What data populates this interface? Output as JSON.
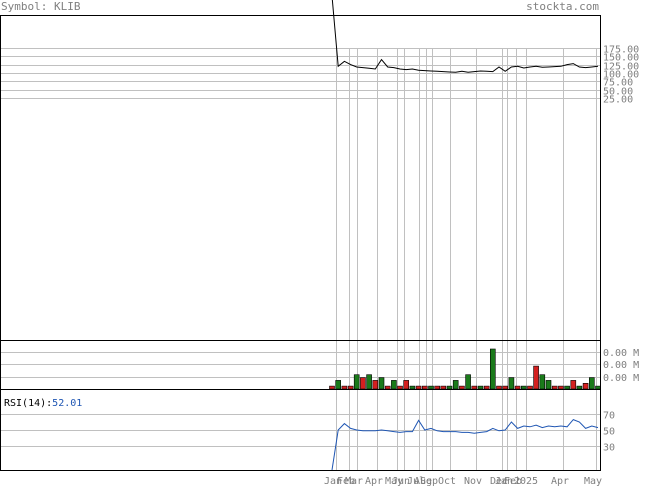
{
  "header": {
    "symbol_label": "Symbol: KLIB",
    "site": "stockta.com"
  },
  "chart_data": [
    {
      "type": "line",
      "panel": "price",
      "title": "",
      "y_ticks": [
        "175.00",
        "150.00",
        "125.00",
        "100.00",
        "75.00",
        "50.00",
        "25.00"
      ],
      "y_tick_values": [
        175,
        150,
        125,
        100,
        75,
        50,
        25
      ],
      "x_month_labels": [
        "Jan",
        "Feb",
        "Mar",
        "Apr",
        "May",
        "Jun",
        "Jul",
        "Aug",
        "Sep",
        "Oct",
        "Nov",
        "Dec",
        "Jan",
        "Feb",
        "2025",
        "Apr",
        "May"
      ],
      "series": [
        {
          "values": [
            5000,
            120,
            135,
            125,
            118,
            116,
            114,
            112,
            140,
            118,
            116,
            112,
            110,
            112,
            108,
            107,
            106,
            105,
            104,
            103,
            102,
            105,
            102,
            104,
            106,
            105,
            104,
            118,
            105,
            118,
            120,
            115,
            118,
            120,
            117,
            118,
            119,
            120,
            125,
            128,
            118,
            116,
            118,
            120
          ]
        }
      ],
      "grid": true
    },
    {
      "type": "bar",
      "panel": "volume",
      "y_ticks": [
        "0.00 M",
        "0.00 M",
        "0.00 M"
      ],
      "values": [
        1,
        3,
        1,
        1,
        5,
        4,
        5,
        3,
        4,
        1,
        3,
        1,
        3,
        1,
        1,
        1,
        1,
        1,
        1,
        1,
        3,
        1,
        5,
        1,
        1,
        1,
        14,
        1,
        1,
        4,
        1,
        1,
        1,
        8,
        5,
        3,
        1,
        1,
        1,
        3,
        1,
        2,
        4,
        1
      ],
      "up": [
        false,
        true,
        false,
        false,
        true,
        false,
        true,
        false,
        true,
        false,
        true,
        false,
        false,
        true,
        false,
        false,
        true,
        false,
        false,
        true,
        true,
        false,
        true,
        false,
        true,
        false,
        true,
        false,
        false,
        true,
        false,
        true,
        false,
        false,
        true,
        true,
        false,
        false,
        true,
        false,
        true,
        false,
        true,
        true
      ]
    },
    {
      "type": "line",
      "panel": "rsi",
      "label": "RSI(14):",
      "label_value": "52.01",
      "y_ticks": [
        "70",
        "50",
        "30"
      ],
      "y_tick_values": [
        70,
        50,
        30
      ],
      "ylim": [
        0,
        100
      ],
      "series": [
        {
          "values": [
            0,
            50,
            58,
            52,
            50,
            49,
            49,
            49,
            50,
            49,
            48,
            47,
            48,
            48,
            62,
            50,
            52,
            49,
            48,
            48,
            48,
            47,
            47,
            46,
            47,
            48,
            52,
            49,
            50,
            60,
            52,
            55,
            54,
            56,
            53,
            55,
            54,
            55,
            54,
            63,
            60,
            52,
            55,
            53
          ]
        }
      ]
    }
  ],
  "colors": {
    "frame": "#000000",
    "grid": "#c0c0c0",
    "axis_text": "#7f7f7f",
    "price_line": "#000000",
    "rsi_line": "#1f56b3",
    "rsi_value": "#1f56b3",
    "vol_up": "#1a7a1a",
    "vol_down": "#d42020"
  }
}
